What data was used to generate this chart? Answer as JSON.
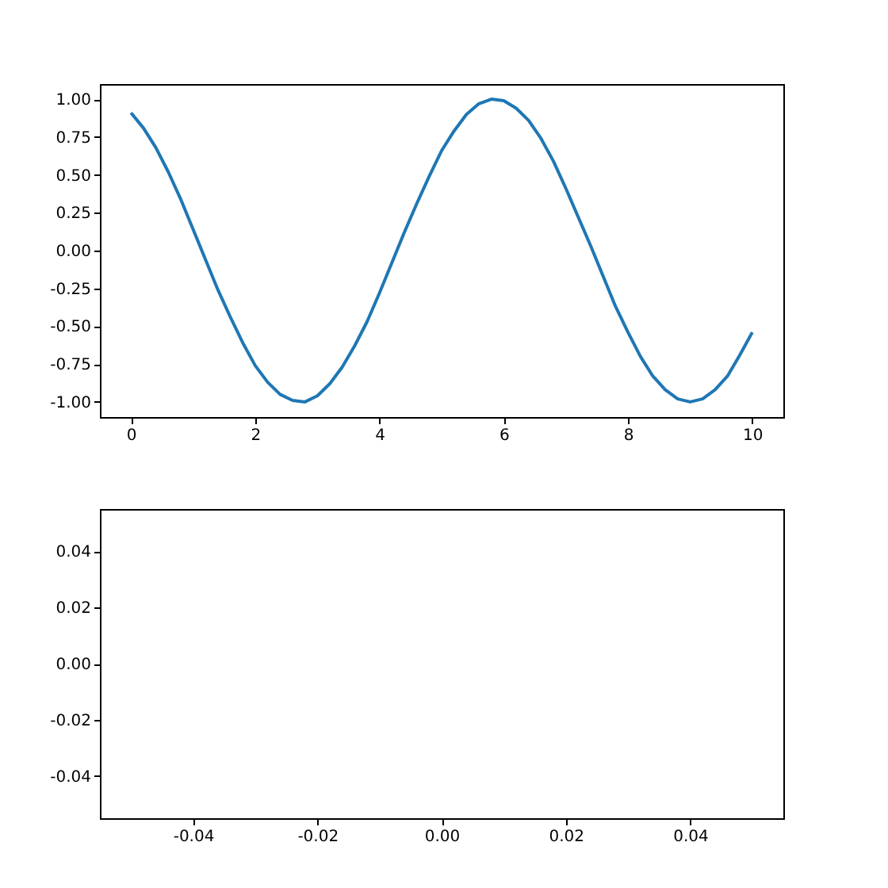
{
  "chart_data": [
    {
      "type": "line",
      "x": [
        0,
        0.2,
        0.4,
        0.6,
        0.8,
        1,
        1.2,
        1.4,
        1.6,
        1.8,
        2,
        2.2,
        2.4,
        2.6,
        2.8,
        3,
        3.2,
        3.4,
        3.6,
        3.8,
        4,
        4.2,
        4.4,
        4.6,
        4.8,
        5,
        5.2,
        5.4,
        5.6,
        5.8,
        6,
        6.2,
        6.4,
        6.6,
        6.8,
        7,
        7.2,
        7.4,
        7.6,
        7.8,
        8,
        8.2,
        8.4,
        8.6,
        8.8,
        9,
        9.2,
        9.4,
        9.6,
        9.8,
        10
      ],
      "series": [
        {
          "color": "#1f77b4",
          "values": [
            0.91,
            0.81,
            0.68,
            0.52,
            0.34,
            0.14,
            -0.06,
            -0.26,
            -0.44,
            -0.61,
            -0.76,
            -0.87,
            -0.95,
            -0.99,
            -1.0,
            -0.96,
            -0.88,
            -0.77,
            -0.63,
            -0.47,
            -0.28,
            -0.08,
            0.12,
            0.31,
            0.49,
            0.66,
            0.79,
            0.9,
            0.97,
            1.0,
            0.99,
            0.94,
            0.86,
            0.74,
            0.59,
            0.41,
            0.22,
            0.03,
            -0.17,
            -0.37,
            -0.54,
            -0.7,
            -0.83,
            -0.92,
            -0.98,
            -1.0,
            -0.98,
            -0.92,
            -0.83,
            -0.69,
            -0.54
          ]
        }
      ],
      "xlim": [
        -0.5,
        10.5
      ],
      "ylim": [
        -1.1,
        1.1
      ],
      "xticks": [
        0,
        2,
        4,
        6,
        8,
        10
      ],
      "yticks": [
        {
          "value": -1,
          "label": "-1.00"
        },
        {
          "value": -0.75,
          "label": "-0.75"
        },
        {
          "value": -0.5,
          "label": "-0.50"
        },
        {
          "value": -0.25,
          "label": "-0.25"
        },
        {
          "value": 0,
          "label": "0.00"
        },
        {
          "value": 0.25,
          "label": "0.25"
        },
        {
          "value": 0.5,
          "label": "0.50"
        },
        {
          "value": 0.75,
          "label": "0.75"
        },
        {
          "value": 1,
          "label": "1.00"
        }
      ],
      "grid": false
    },
    {
      "type": "line",
      "xlim": [
        -0.055,
        0.055
      ],
      "ylim": [
        -0.055,
        0.055
      ],
      "xticks": [
        {
          "value": -0.04,
          "label": "-0.04"
        },
        {
          "value": -0.02,
          "label": "-0.02"
        },
        {
          "value": 0,
          "label": "0.00"
        },
        {
          "value": 0.02,
          "label": "0.02"
        },
        {
          "value": 0.04,
          "label": "0.04"
        }
      ],
      "yticks": [
        {
          "value": -0.04,
          "label": "-0.04"
        },
        {
          "value": -0.02,
          "label": "-0.02"
        },
        {
          "value": 0,
          "label": "0.00"
        },
        {
          "value": 0.02,
          "label": "0.02"
        },
        {
          "value": 0.04,
          "label": "0.04"
        }
      ]
    }
  ]
}
